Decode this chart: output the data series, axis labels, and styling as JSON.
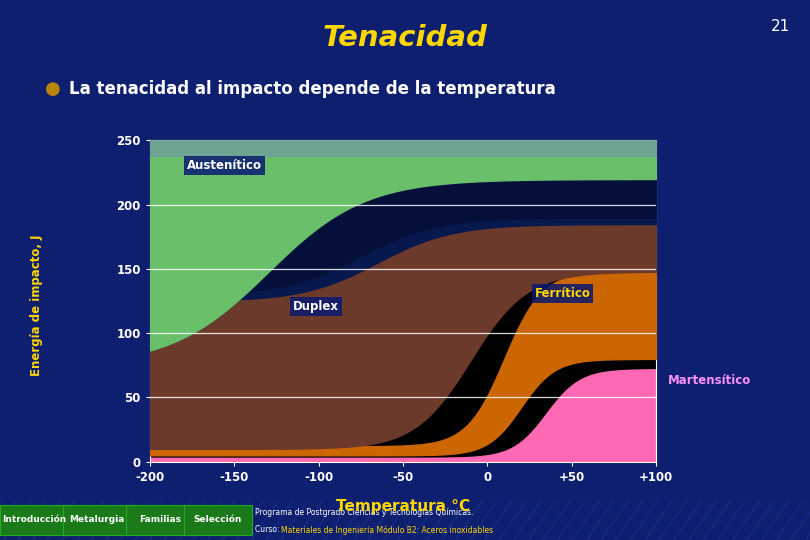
{
  "title": "Tenacidad",
  "slide_number": "21",
  "subtitle": "La tenacidad al impacto depende de la temperatura",
  "ylabel": "Energía de impacto, J",
  "xlabel": "Temperatura °C",
  "bg_color": "#0d1f6e",
  "plot_bg": "#000000",
  "title_color": "#ffd700",
  "subtitle_color": "#ffffff",
  "ylabel_color": "#ffd700",
  "xlabel_color": "#ffd700",
  "tick_color": "#ffd700",
  "xmin": -200,
  "xmax": 100,
  "ymin": 0,
  "ymax": 250,
  "yticks": [
    0,
    50,
    100,
    150,
    200,
    250
  ],
  "xticks": [
    -200,
    -150,
    -100,
    -50,
    0,
    50,
    100
  ],
  "xtick_labels": [
    "-200",
    "-150",
    "-100",
    "-50",
    "0",
    "+50",
    "+100"
  ],
  "label_austenitic": "Austenítico",
  "label_duplex": "Duplex",
  "label_ferritic": "Ferrítico",
  "label_martensitic": "Martensítico",
  "color_austenitic": "#6abf6a",
  "color_duplex_band": "#0a1a7a",
  "color_ferritic": "#cc6600",
  "color_martensitic": "#ff69b4",
  "color_dark_brown": "#6b3a2a",
  "color_grey_blue": "#7090b0",
  "color_dark_navy": "#05103a",
  "footer_bg": "#0a155a",
  "footer_btn_color": "#1a7a1a",
  "btn_labels": [
    "Introducción",
    "Metalurgia",
    "Familias",
    "Selección"
  ]
}
